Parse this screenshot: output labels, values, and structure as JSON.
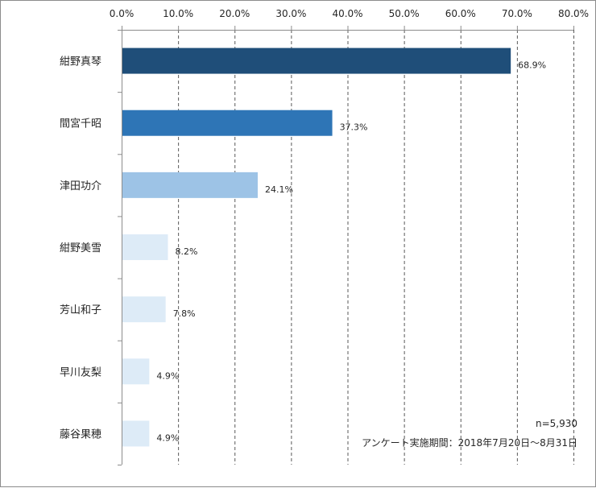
{
  "chart_data": {
    "type": "bar",
    "orientation": "horizontal",
    "categories": [
      "紺野真琴",
      "間宮千昭",
      "津田功介",
      "紺野美雪",
      "芳山和子",
      "早川友梨",
      "藤谷果穂"
    ],
    "values": [
      68.9,
      37.3,
      24.1,
      8.2,
      7.8,
      4.9,
      4.9
    ],
    "value_labels": [
      "68.9%",
      "37.3%",
      "24.1%",
      "8.2%",
      "7.8%",
      "4.9%",
      "4.9%"
    ],
    "bar_colors": [
      "#1f4e79",
      "#2e75b6",
      "#9dc3e6",
      "#ddebf7",
      "#ddebf7",
      "#ddebf7",
      "#ddebf7"
    ],
    "xlim": [
      0,
      80
    ],
    "x_ticks": [
      0,
      10,
      20,
      30,
      40,
      50,
      60,
      70,
      80
    ],
    "x_tick_labels": [
      "0.0%",
      "10.0%",
      "20.0%",
      "30.0%",
      "40.0%",
      "50.0%",
      "60.0%",
      "70.0%",
      "80.0%"
    ],
    "axis_position": "top",
    "grid": "vertical-dashed",
    "title": "",
    "xlabel": "",
    "ylabel": ""
  },
  "notes": {
    "sample_size": "n=5,930",
    "survey_period": "アンケート実施期間：2018年7月20日～8月31日"
  }
}
